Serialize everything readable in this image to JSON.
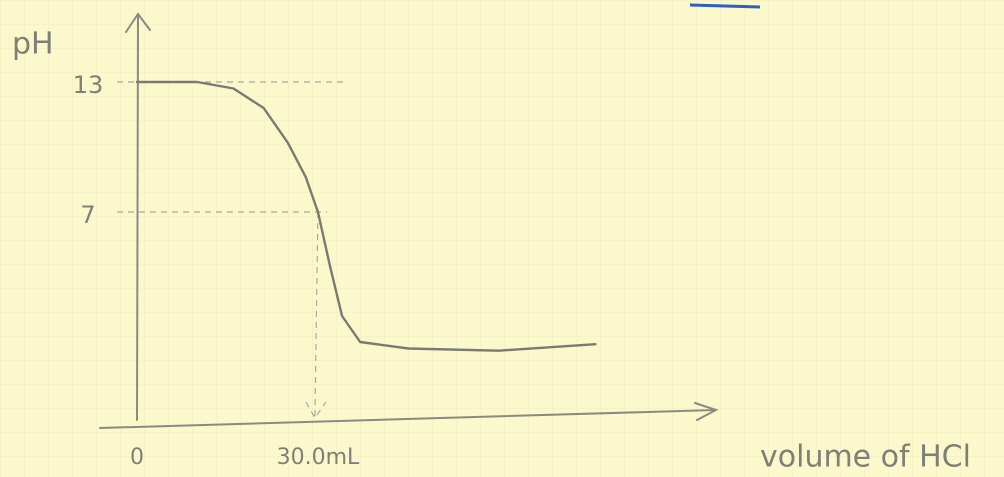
{
  "chart_data": {
    "type": "line",
    "y_label": "pH",
    "x_label": "volume of HCl",
    "x": [
      0,
      10,
      16,
      21,
      25,
      28,
      30,
      32,
      34,
      37,
      45,
      60,
      76
    ],
    "values": [
      13,
      13,
      12.7,
      11.8,
      10.2,
      8.6,
      7,
      4.5,
      2.2,
      1.0,
      0.7,
      0.6,
      0.9
    ],
    "color": "#7a7a72",
    "xlim": [
      0,
      96
    ],
    "ylim": [
      -2.6,
      16
    ],
    "xticks": [
      0,
      {
        "value": 30,
        "label": "30.0mL"
      }
    ],
    "yticks": [
      7,
      13
    ]
  }
}
